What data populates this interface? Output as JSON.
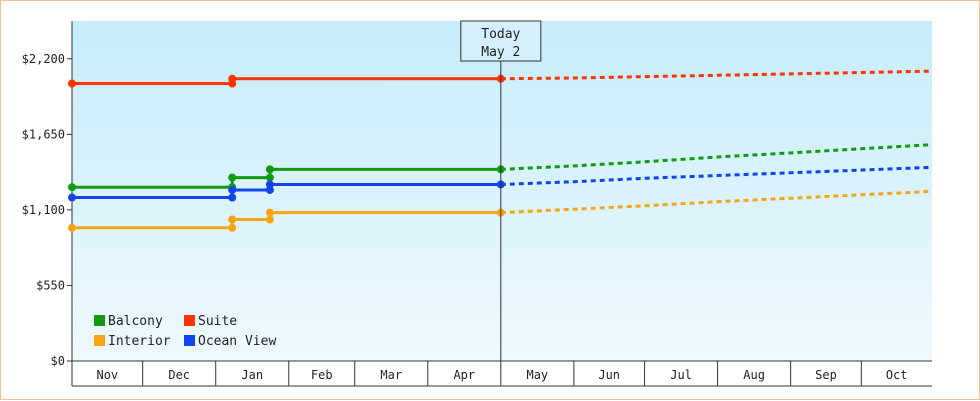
{
  "chart_data": {
    "type": "line",
    "title": "",
    "xlabel": "",
    "ylabel": "",
    "ylim": [
      0,
      2475
    ],
    "y_ticks": [
      {
        "value": 0,
        "label": "$0"
      },
      {
        "value": 550,
        "label": "$550"
      },
      {
        "value": 1100,
        "label": "$1,100"
      },
      {
        "value": 1650,
        "label": "$1,650"
      },
      {
        "value": 2200,
        "label": "$2,200"
      }
    ],
    "x_range": [
      0,
      365
    ],
    "months": [
      {
        "label": "Nov",
        "start": 0,
        "end": 30
      },
      {
        "label": "Dec",
        "start": 30,
        "end": 61
      },
      {
        "label": "Jan",
        "start": 61,
        "end": 92
      },
      {
        "label": "Feb",
        "start": 92,
        "end": 120
      },
      {
        "label": "Mar",
        "start": 120,
        "end": 151
      },
      {
        "label": "Apr",
        "start": 151,
        "end": 182
      },
      {
        "label": "May",
        "start": 182,
        "end": 213
      },
      {
        "label": "Jun",
        "start": 213,
        "end": 243
      },
      {
        "label": "Jul",
        "start": 243,
        "end": 274
      },
      {
        "label": "Aug",
        "start": 274,
        "end": 305
      },
      {
        "label": "Sep",
        "start": 305,
        "end": 335
      },
      {
        "label": "Oct",
        "start": 335,
        "end": 365
      }
    ],
    "today": {
      "line1": "Today",
      "line2": "May 2",
      "x": 182
    },
    "grid": false,
    "legend_position": "bottom-left",
    "series": [
      {
        "name": "Balcony",
        "color": "#119911",
        "history": [
          [
            0,
            1265
          ],
          [
            68,
            1265
          ],
          [
            68,
            1335
          ],
          [
            84,
            1335
          ],
          [
            84,
            1395
          ],
          [
            182,
            1395
          ]
        ],
        "markers": [
          [
            0,
            1265
          ],
          [
            68,
            1265
          ],
          [
            68,
            1335
          ],
          [
            84,
            1335
          ],
          [
            84,
            1395
          ],
          [
            182,
            1395
          ]
        ],
        "forecast": [
          [
            182,
            1395
          ],
          [
            213,
            1420
          ],
          [
            243,
            1450
          ],
          [
            274,
            1485
          ],
          [
            305,
            1515
          ],
          [
            335,
            1545
          ],
          [
            365,
            1575
          ]
        ]
      },
      {
        "name": "Suite",
        "color": "#ff3300",
        "history": [
          [
            0,
            2020
          ],
          [
            68,
            2020
          ],
          [
            68,
            2055
          ],
          [
            182,
            2055
          ]
        ],
        "markers": [
          [
            0,
            2020
          ],
          [
            68,
            2020
          ],
          [
            68,
            2055
          ],
          [
            182,
            2055
          ]
        ],
        "forecast": [
          [
            182,
            2055
          ],
          [
            213,
            2060
          ],
          [
            243,
            2070
          ],
          [
            274,
            2080
          ],
          [
            305,
            2090
          ],
          [
            335,
            2100
          ],
          [
            365,
            2110
          ]
        ]
      },
      {
        "name": "Interior",
        "color": "#f5a511",
        "history": [
          [
            0,
            970
          ],
          [
            68,
            970
          ],
          [
            68,
            1030
          ],
          [
            84,
            1030
          ],
          [
            84,
            1080
          ],
          [
            182,
            1080
          ]
        ],
        "markers": [
          [
            0,
            970
          ],
          [
            68,
            970
          ],
          [
            68,
            1030
          ],
          [
            84,
            1030
          ],
          [
            84,
            1080
          ],
          [
            182,
            1080
          ]
        ],
        "forecast": [
          [
            182,
            1080
          ],
          [
            213,
            1105
          ],
          [
            243,
            1130
          ],
          [
            274,
            1160
          ],
          [
            305,
            1185
          ],
          [
            335,
            1210
          ],
          [
            365,
            1235
          ]
        ]
      },
      {
        "name": "Ocean View",
        "color": "#1144ee",
        "history": [
          [
            0,
            1190
          ],
          [
            68,
            1190
          ],
          [
            68,
            1245
          ],
          [
            84,
            1245
          ],
          [
            84,
            1285
          ],
          [
            182,
            1285
          ]
        ],
        "markers": [
          [
            0,
            1190
          ],
          [
            68,
            1190
          ],
          [
            68,
            1245
          ],
          [
            84,
            1245
          ],
          [
            84,
            1285
          ],
          [
            182,
            1285
          ]
        ],
        "forecast": [
          [
            182,
            1285
          ],
          [
            213,
            1305
          ],
          [
            243,
            1330
          ],
          [
            274,
            1350
          ],
          [
            305,
            1370
          ],
          [
            335,
            1390
          ],
          [
            365,
            1410
          ]
        ]
      }
    ]
  }
}
